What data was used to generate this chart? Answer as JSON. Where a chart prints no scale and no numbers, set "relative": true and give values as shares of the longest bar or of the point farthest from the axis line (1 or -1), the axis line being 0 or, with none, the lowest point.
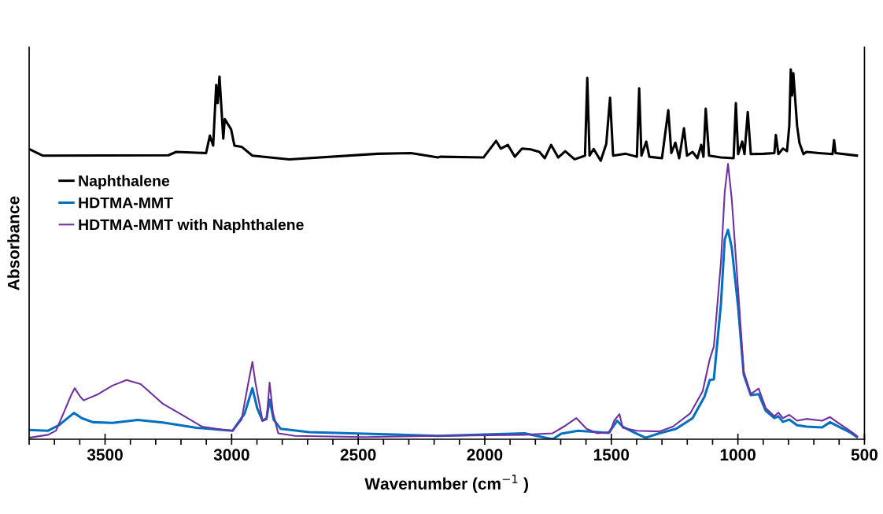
{
  "chart_data": {
    "type": "line",
    "relative": true,
    "xlabel": "Wavenumber (cm$^{−1}$ )",
    "ylabel": "Absorbance",
    "xlim": [
      3800,
      500
    ],
    "xticks": [
      3500,
      3000,
      2500,
      2000,
      1500,
      1000,
      500
    ],
    "legend": "left",
    "grid": false,
    "marker": "none",
    "line_style": "solid",
    "series": [
      {
        "name": "Naphthalene",
        "color": "#000000",
        "x": [
          3800,
          3747,
          3250,
          3219,
          3101,
          3086,
          3073,
          3061,
          3055,
          3048,
          3033,
          3027,
          3002,
          2989,
          2961,
          2918,
          2772,
          2424,
          2291,
          2185,
          2176,
          2005,
          1955,
          1937,
          1909,
          1881,
          1853,
          1819,
          1784,
          1763,
          1738,
          1710,
          1682,
          1645,
          1604,
          1595,
          1586,
          1570,
          1542,
          1520,
          1505,
          1493,
          1443,
          1399,
          1390,
          1381,
          1362,
          1350,
          1300,
          1275,
          1263,
          1247,
          1232,
          1213,
          1201,
          1179,
          1160,
          1145,
          1136,
          1127,
          1114,
          1067,
          1017,
          1008,
          999,
          983,
          974,
          961,
          949,
          899,
          856,
          850,
          840,
          822,
          806,
          797,
          791,
          786,
          781,
          766,
          757,
          741,
          729,
          679,
          626,
          620,
          614,
          530
        ],
        "values": [
          0.785,
          0.767,
          0.768,
          0.777,
          0.774,
          0.821,
          0.794,
          0.958,
          0.909,
          0.981,
          0.813,
          0.866,
          0.838,
          0.794,
          0.791,
          0.767,
          0.757,
          0.772,
          0.774,
          0.762,
          0.764,
          0.762,
          0.807,
          0.786,
          0.796,
          0.764,
          0.786,
          0.784,
          0.777,
          0.76,
          0.796,
          0.762,
          0.779,
          0.757,
          0.767,
          0.977,
          0.767,
          0.785,
          0.753,
          0.799,
          0.924,
          0.767,
          0.772,
          0.764,
          0.949,
          0.767,
          0.805,
          0.764,
          0.76,
          0.89,
          0.774,
          0.802,
          0.76,
          0.841,
          0.767,
          0.777,
          0.76,
          0.796,
          0.764,
          0.894,
          0.767,
          0.762,
          0.76,
          0.909,
          0.771,
          0.805,
          0.771,
          0.885,
          0.771,
          0.772,
          0.774,
          0.823,
          0.771,
          0.786,
          0.779,
          0.847,
          1.0,
          0.93,
          0.99,
          0.847,
          0.802,
          0.771,
          0.777,
          0.774,
          0.771,
          0.809,
          0.774,
          0.767
        ]
      },
      {
        "name": "HDTMA-MMT",
        "color": "#0070c0",
        "x": [
          3800,
          3725,
          3682,
          3623,
          3592,
          3548,
          3471,
          3371,
          3272,
          3139,
          2996,
          2949,
          2918,
          2899,
          2878,
          2862,
          2850,
          2834,
          2806,
          2694,
          2474,
          2185,
          1843,
          1732,
          1698,
          1632,
          1511,
          1477,
          1455,
          1412,
          1365,
          1310,
          1244,
          1179,
          1132,
          1111,
          1095,
          1067,
          1052,
          1039,
          1024,
          999,
          977,
          949,
          918,
          890,
          856,
          840,
          822,
          797,
          766,
          729,
          667,
          636,
          601,
          558,
          530
        ],
        "values": [
          0.025,
          0.023,
          0.038,
          0.071,
          0.057,
          0.046,
          0.044,
          0.052,
          0.045,
          0.031,
          0.023,
          0.069,
          0.138,
          0.084,
          0.05,
          0.057,
          0.107,
          0.053,
          0.028,
          0.019,
          0.015,
          0.009,
          0.016,
          0.0,
          0.015,
          0.023,
          0.017,
          0.05,
          0.034,
          0.019,
          0.004,
          0.016,
          0.028,
          0.057,
          0.115,
          0.16,
          0.162,
          0.366,
          0.54,
          0.566,
          0.517,
          0.357,
          0.175,
          0.119,
          0.122,
          0.077,
          0.057,
          0.062,
          0.047,
          0.053,
          0.038,
          0.034,
          0.032,
          0.046,
          0.034,
          0.019,
          0.006
        ]
      },
      {
        "name": "HDTMA-MMT with Naphthalene",
        "color": "#7030a0",
        "x": [
          3800,
          3725,
          3694,
          3660,
          3635,
          3620,
          3598,
          3585,
          3527,
          3471,
          3415,
          3359,
          3272,
          3194,
          3117,
          3039,
          2996,
          2961,
          2934,
          2918,
          2906,
          2878,
          2862,
          2850,
          2837,
          2816,
          2750,
          2474,
          2185,
          1843,
          1732,
          1688,
          1638,
          1598,
          1555,
          1505,
          1489,
          1468,
          1455,
          1399,
          1310,
          1257,
          1188,
          1139,
          1111,
          1095,
          1067,
          1052,
          1039,
          1024,
          999,
          977,
          949,
          918,
          890,
          856,
          840,
          822,
          797,
          766,
          729,
          667,
          636,
          601,
          558,
          530
        ],
        "values": [
          0.004,
          0.012,
          0.023,
          0.077,
          0.118,
          0.138,
          0.115,
          0.105,
          0.122,
          0.145,
          0.16,
          0.149,
          0.096,
          0.065,
          0.034,
          0.026,
          0.023,
          0.053,
          0.153,
          0.209,
          0.153,
          0.05,
          0.053,
          0.153,
          0.072,
          0.016,
          0.009,
          0.006,
          0.009,
          0.012,
          0.016,
          0.034,
          0.057,
          0.028,
          0.016,
          0.019,
          0.05,
          0.068,
          0.031,
          0.023,
          0.021,
          0.034,
          0.07,
          0.13,
          0.217,
          0.251,
          0.479,
          0.669,
          0.745,
          0.647,
          0.403,
          0.183,
          0.122,
          0.137,
          0.084,
          0.062,
          0.072,
          0.057,
          0.066,
          0.05,
          0.055,
          0.05,
          0.06,
          0.043,
          0.023,
          0.009
        ]
      }
    ]
  }
}
